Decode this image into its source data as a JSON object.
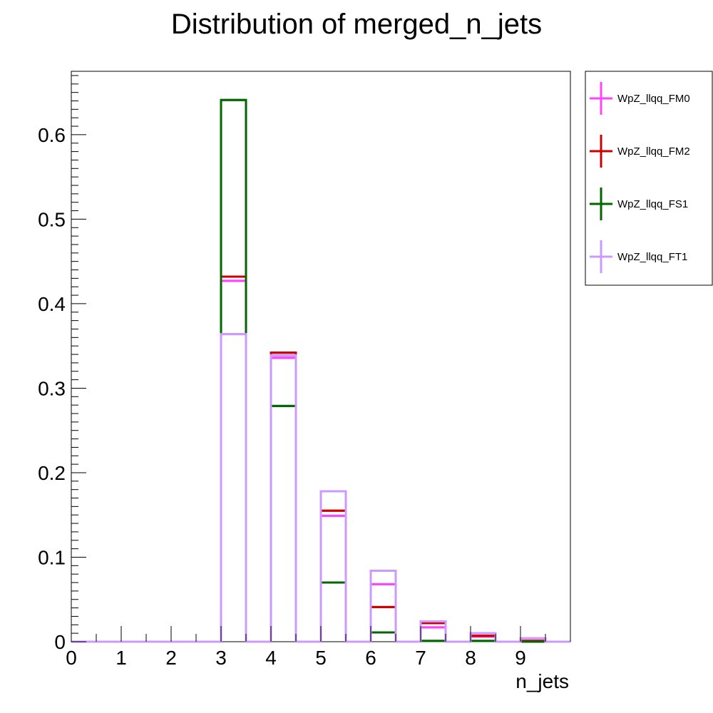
{
  "chart_data": {
    "type": "bar",
    "title": "Distribution of merged_n_jets",
    "xlabel": "n_jets",
    "ylabel": "",
    "xlim": [
      0,
      10
    ],
    "ylim": [
      0,
      0.675
    ],
    "grid": false,
    "legend_position": "right",
    "x_ticks": [
      "0",
      "1",
      "2",
      "3",
      "4",
      "5",
      "6",
      "7",
      "8",
      "9"
    ],
    "y_ticks": [
      "0",
      "0.1",
      "0.2",
      "0.3",
      "0.4",
      "0.5",
      "0.6"
    ],
    "bin_width": 0.5,
    "bins": [
      3,
      4,
      5,
      6,
      7,
      8,
      9
    ],
    "series": [
      {
        "name": "WpZ_llqq_FM0",
        "color": "#ff44ff",
        "values": [
          0.427,
          0.336,
          0.149,
          0.068,
          0.017,
          0.006,
          0.001
        ]
      },
      {
        "name": "WpZ_llqq_FM2",
        "color": "#cc0000",
        "values": [
          0.432,
          0.342,
          0.155,
          0.041,
          0.022,
          0.007,
          0.001
        ]
      },
      {
        "name": "WpZ_llqq_FS1",
        "color": "#006600",
        "values": [
          0.641,
          0.279,
          0.07,
          0.011,
          0.001,
          0.001,
          0.0
        ]
      },
      {
        "name": "WpZ_llqq_FT1",
        "color": "#cc99ff",
        "values": [
          0.364,
          0.339,
          0.178,
          0.084,
          0.024,
          0.01,
          0.004
        ]
      }
    ]
  }
}
